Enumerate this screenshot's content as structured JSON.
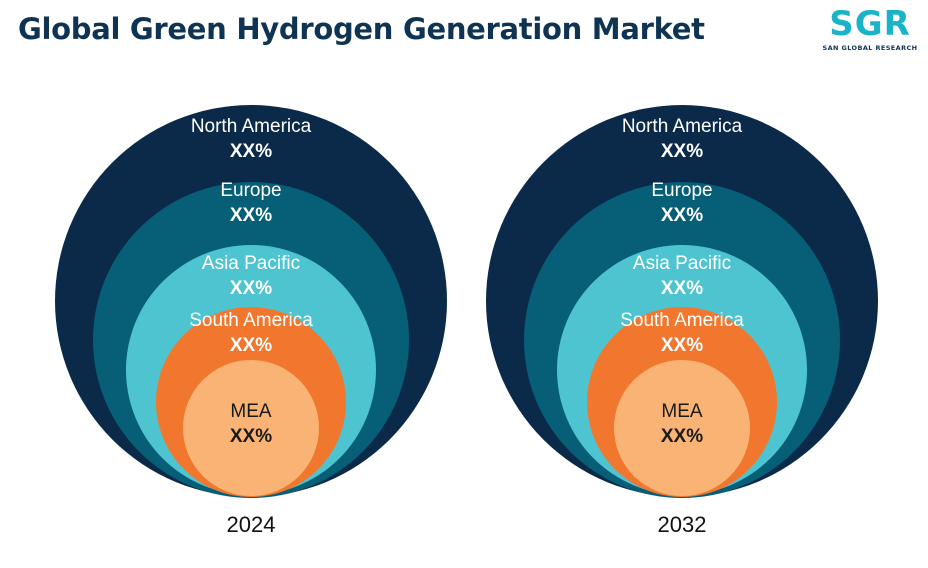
{
  "title": "Global Green Hydrogen Generation Market",
  "logo": {
    "mark": "SGR",
    "subtitle": "SAN GLOBAL RESEARCH"
  },
  "colors": {
    "North America": "#0b2a4a",
    "Europe": "#075e77",
    "Asia Pacific": "#4ec4d0",
    "South America": "#f2772e",
    "MEA": "#f9b375"
  },
  "chart_data": [
    {
      "type": "nested-circle",
      "year": "2024",
      "segments": [
        {
          "name": "North America",
          "value": "XX%"
        },
        {
          "name": "Europe",
          "value": "XX%"
        },
        {
          "name": "Asia Pacific",
          "value": "XX%"
        },
        {
          "name": "South America",
          "value": "XX%"
        },
        {
          "name": "MEA",
          "value": "XX%"
        }
      ]
    },
    {
      "type": "nested-circle",
      "year": "2032",
      "segments": [
        {
          "name": "North America",
          "value": "XX%"
        },
        {
          "name": "Europe",
          "value": "XX%"
        },
        {
          "name": "Asia Pacific",
          "value": "XX%"
        },
        {
          "name": "South America",
          "value": "XX%"
        },
        {
          "name": "MEA",
          "value": "XX%"
        }
      ]
    }
  ]
}
